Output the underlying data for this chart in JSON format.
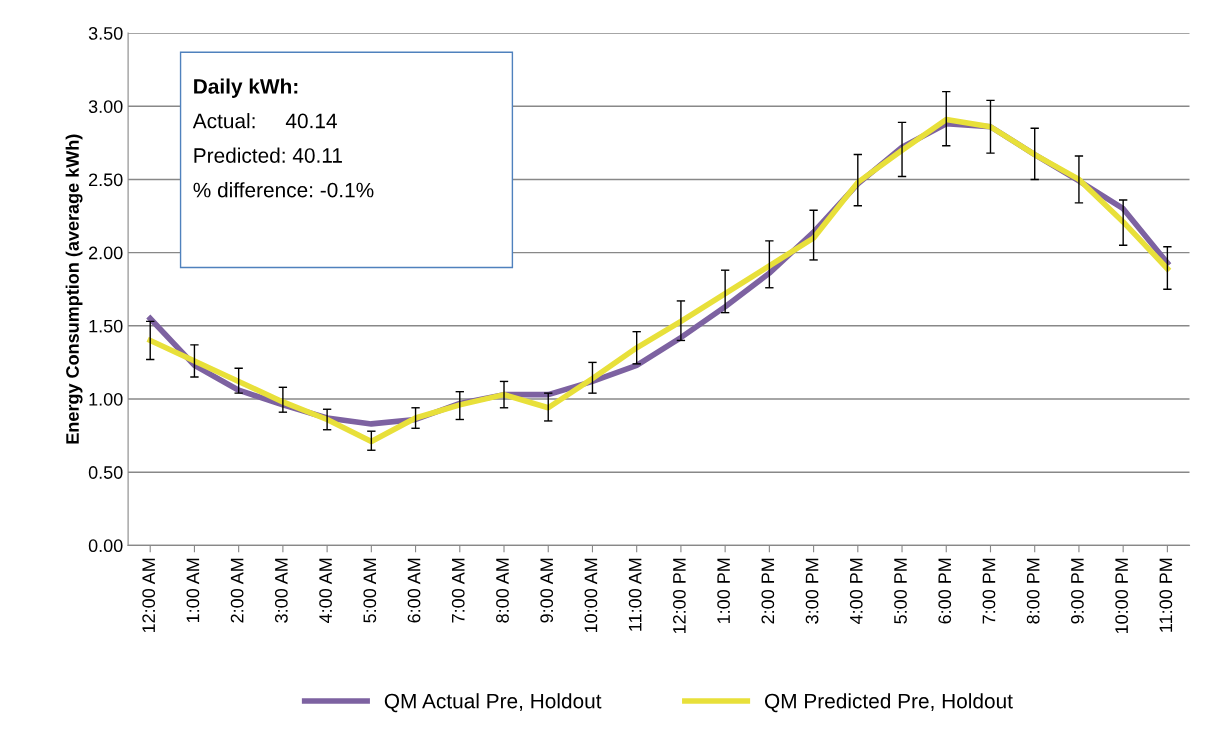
{
  "chart_data": {
    "type": "line",
    "ylabel": "Energy Consumption (average kWh)",
    "categories": [
      "12:00 AM",
      "1:00 AM",
      "2:00 AM",
      "3:00 AM",
      "4:00 AM",
      "5:00 AM",
      "6:00 AM",
      "7:00 AM",
      "8:00 AM",
      "9:00 AM",
      "10:00 AM",
      "11:00 AM",
      "12:00 PM",
      "1:00 PM",
      "2:00 PM",
      "3:00 PM",
      "4:00 PM",
      "5:00 PM",
      "6:00 PM",
      "7:00 PM",
      "8:00 PM",
      "9:00 PM",
      "10:00 PM",
      "11:00 PM"
    ],
    "series": [
      {
        "name": "QM Actual Pre, Holdout",
        "color": "#7d62a1",
        "values": [
          1.55,
          1.23,
          1.06,
          0.96,
          0.87,
          0.83,
          0.86,
          0.97,
          1.03,
          1.03,
          1.12,
          1.23,
          1.42,
          1.63,
          1.86,
          2.14,
          2.47,
          2.72,
          2.88,
          2.86,
          2.67,
          2.49,
          2.3,
          1.93
        ]
      },
      {
        "name": "QM Predicted Pre, Holdout",
        "color": "#e8e03a",
        "values": [
          1.4,
          1.26,
          1.12,
          0.98,
          0.86,
          0.71,
          0.87,
          0.96,
          1.03,
          0.94,
          1.14,
          1.35,
          1.53,
          1.72,
          1.91,
          2.1,
          2.48,
          2.7,
          2.91,
          2.86,
          2.67,
          2.5,
          2.21,
          1.89
        ],
        "errors": [
          [
            1.27,
            1.53
          ],
          [
            1.15,
            1.37
          ],
          [
            1.04,
            1.21
          ],
          [
            0.91,
            1.08
          ],
          [
            0.79,
            0.93
          ],
          [
            0.65,
            0.78
          ],
          [
            0.8,
            0.94
          ],
          [
            0.86,
            1.05
          ],
          [
            0.94,
            1.12
          ],
          [
            0.85,
            1.04
          ],
          [
            1.04,
            1.25
          ],
          [
            1.24,
            1.46
          ],
          [
            1.4,
            1.67
          ],
          [
            1.59,
            1.88
          ],
          [
            1.76,
            2.08
          ],
          [
            1.95,
            2.29
          ],
          [
            2.32,
            2.67
          ],
          [
            2.52,
            2.89
          ],
          [
            2.73,
            3.1
          ],
          [
            2.68,
            3.04
          ],
          [
            2.5,
            2.85
          ],
          [
            2.34,
            2.66
          ],
          [
            2.05,
            2.36
          ],
          [
            1.75,
            2.04
          ]
        ]
      }
    ],
    "ylim": [
      0,
      3.5
    ],
    "yticks": [
      {
        "value": 0,
        "label": "0.00"
      },
      {
        "value": 0.5,
        "label": "0.50"
      },
      {
        "value": 1,
        "label": "1.00"
      },
      {
        "value": 1.5,
        "label": "1.50"
      },
      {
        "value": 2,
        "label": "2.00"
      },
      {
        "value": 2.5,
        "label": "2.50"
      },
      {
        "value": 3,
        "label": "3.00"
      },
      {
        "value": 3.5,
        "label": "3.50"
      }
    ],
    "grid": "y",
    "legend": "bottom",
    "marker": "none",
    "line_style": "solid",
    "annotations": [
      "Daily kWh:",
      "Actual:     40.14",
      "Predicted: 40.11",
      "% difference: -0.1%"
    ]
  }
}
